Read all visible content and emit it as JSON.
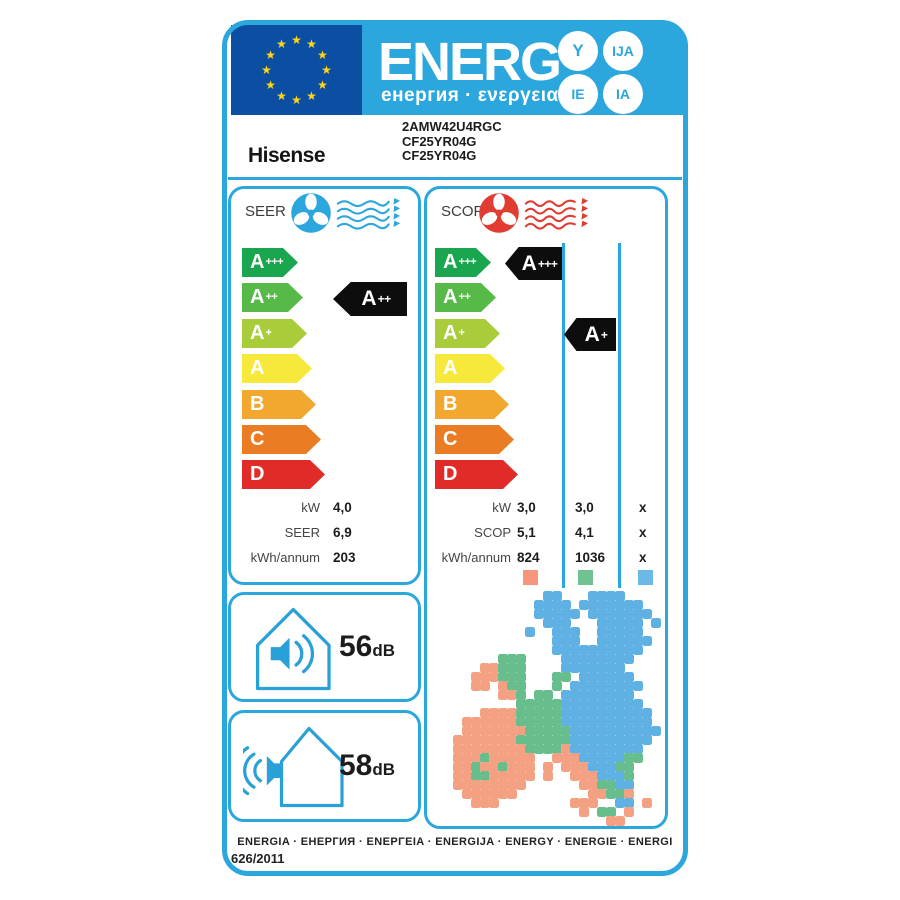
{
  "colors": {
    "accent": "#2ba7dd",
    "flag_blue": "#0b4ea2",
    "star_yellow": "#ffd617",
    "black_indicator": "#0d0d0d",
    "heating_icon_red": "#e03c31"
  },
  "header": {
    "energ": "ENERG",
    "subtitle": "енергия · ενεργεια",
    "badges": [
      "Y",
      "IJA",
      "IE",
      "IA"
    ],
    "star_count": 12
  },
  "product": {
    "brand": "Hisense",
    "models": [
      "2AMW42U4RGC",
      "CF25YR04G",
      "CF25YR04G"
    ]
  },
  "scale": {
    "colors": [
      "#1aa54f",
      "#57b947",
      "#a8cc3a",
      "#f7e93c",
      "#f2a72e",
      "#ea7c24",
      "#e02b28"
    ],
    "tiers": [
      {
        "grade": "A",
        "plus": "+++"
      },
      {
        "grade": "A",
        "plus": "++"
      },
      {
        "grade": "A",
        "plus": "+"
      },
      {
        "grade": "A",
        "plus": ""
      },
      {
        "grade": "B",
        "plus": ""
      },
      {
        "grade": "C",
        "plus": ""
      },
      {
        "grade": "D",
        "plus": ""
      }
    ]
  },
  "cooling": {
    "label": "SEER",
    "indicator": {
      "grade": "A",
      "plus": "++"
    },
    "rows": [
      {
        "label": "kW",
        "value": "4,0"
      },
      {
        "label": "SEER",
        "value": "6,9"
      },
      {
        "label": "kWh/annum",
        "value": "203"
      }
    ]
  },
  "heating": {
    "label": "SCOP",
    "indicators": [
      {
        "grade": "A",
        "plus": "+++"
      },
      {
        "grade": "A",
        "plus": "+"
      }
    ],
    "rows": [
      {
        "label": "kW",
        "values": [
          "3,0",
          "3,0",
          "x"
        ]
      },
      {
        "label": "SCOP",
        "values": [
          "5,1",
          "4,1",
          "x"
        ]
      },
      {
        "label": "kWh/annum",
        "values": [
          "824",
          "1036",
          "x"
        ]
      }
    ],
    "zone_colors": [
      "#f4957c",
      "#70c291",
      "#6cb9e8"
    ]
  },
  "noise": [
    {
      "value": "56",
      "unit": "dB",
      "type": "indoor"
    },
    {
      "value": "58",
      "unit": "dB",
      "type": "outdoor"
    }
  ],
  "footer": {
    "languages": "ENERGIA · ЕНЕРГИЯ · ENEPΓEIA · ENERGIJA · ENERGY · ENERGIE · ENERGI",
    "regulation": "626/2011"
  },
  "map": {
    "cell": 9,
    "palette": {
      "O": "#f4a183",
      "G": "#68bd8d",
      "B": "#5fb0e3"
    },
    "rows": [
      "..........BB...BBBB.....",
      ".........BBBB.BBBBBBB...",
      ".........BBBBB.BBBBBBB..",
      "..........BBB...BBBBB.B.",
      "........B..BBB..BBBBB...",
      "...........BBB..BBBBBB..",
      "...........BBBBBBBBBB...",
      ".....GGG....BBBBBBBB....",
      "...OOGGG....BBBBBBB.....",
      "..OOOGGG...GG.BBBBBB....",
      "..OO.OGG...G.BBBBBBBB...",
      ".....OOG.GG.BBBBBBBB....",
      ".......GGGGGBBBBBBBBB...",
      "...OOOOGGGGGBBBBBBBBBB..",
      ".OOOOOOGGGGGBBBBBBBBBB..",
      ".OOOOOOOGGGGGBBBBBBBBBB.",
      "OOOOOOOGGGGGGBBBBBBBBB..",
      "OOOOOOOOGGGGOBBBBBBBB...",
      "OOOGOOOOO..OOOBBBBBGG...",
      "OOGOOGOOO.O.OOOBBBGG....",
      "OOGGOOOOO.O..OOOBBBG....",
      "OOOOOOOO......OOGGBB....",
      ".OOOOOO........OOGGO....",
      "..OOO........OOO..BB.O..",
      "..............O.GG.O....",
      ".................OO....."
    ]
  }
}
